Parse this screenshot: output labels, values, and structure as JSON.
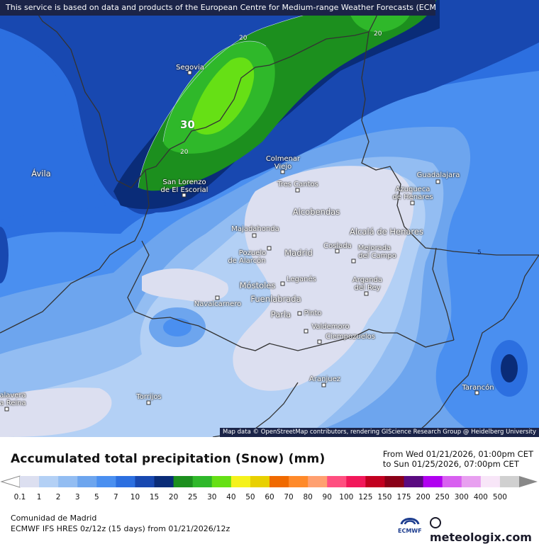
{
  "banner": "This service is based on data and products of the European Centre for Medium-range Weather Forecasts (ECMWF)",
  "attribution": "Map data © OpenStreetMap contributors, rendering GIScience Research Group @ Heidelberg University",
  "cities": [
    {
      "name": "Segovia",
      "key": "segovia"
    },
    {
      "name": "Ávila",
      "key": "avila"
    },
    {
      "name": "San Lorenzo",
      "key": "san_lorenzo_1"
    },
    {
      "name": "de El Escorial",
      "key": "san_lorenzo_2"
    },
    {
      "name": "Colmenar",
      "key": "colmenar_1"
    },
    {
      "name": "Viejo",
      "key": "colmenar_2"
    },
    {
      "name": "Tres Cantos",
      "key": "tres_cantos"
    },
    {
      "name": "Guadalajara",
      "key": "guadalajara"
    },
    {
      "name": "Azuqueca",
      "key": "azuqueca_1"
    },
    {
      "name": "de Henares",
      "key": "azuqueca_2"
    },
    {
      "name": "Alcobendas",
      "key": "alcobendas"
    },
    {
      "name": "Majadahonda",
      "key": "majadahonda"
    },
    {
      "name": "Alcalá de Henares",
      "key": "alcala"
    },
    {
      "name": "Pozuelo",
      "key": "pozuelo_1"
    },
    {
      "name": "de Alarcón",
      "key": "pozuelo_2"
    },
    {
      "name": "Madrid",
      "key": "madrid"
    },
    {
      "name": "Coslada",
      "key": "coslada"
    },
    {
      "name": "Mejorada",
      "key": "mejorada_1"
    },
    {
      "name": "del Campo",
      "key": "mejorada_2"
    },
    {
      "name": "Leganés",
      "key": "leganes"
    },
    {
      "name": "Móstoles",
      "key": "mostoles"
    },
    {
      "name": "Arganda",
      "key": "arganda_1"
    },
    {
      "name": "del Rey",
      "key": "arganda_2"
    },
    {
      "name": "Fuenlabrada",
      "key": "fuenlabrada"
    },
    {
      "name": "Navalcarnero",
      "key": "navalcarnero"
    },
    {
      "name": "Parla",
      "key": "parla"
    },
    {
      "name": "Pinto",
      "key": "pinto"
    },
    {
      "name": "Valdemoro",
      "key": "valdemoro"
    },
    {
      "name": "Ciempozuelos",
      "key": "ciempozuelos"
    },
    {
      "name": "Aranjuez",
      "key": "aranjuez"
    },
    {
      "name": "Tarancón",
      "key": "tarancon"
    },
    {
      "name": "Torrijos",
      "key": "torrijos"
    },
    {
      "name": "alavera",
      "key": "talavera_1"
    },
    {
      "name": "a Reina",
      "key": "talavera_2"
    }
  ],
  "contour_labels": {
    "c20a": "20",
    "c20b": "20",
    "c20c": "20",
    "c30": "30",
    "c5": "5"
  },
  "title": "Accumulated total precipitation (Snow) (mm)",
  "range_from": "From Wed 01/21/2026, 01:00pm CET",
  "range_to": "to Sun 01/25/2026, 07:00pm CET",
  "legend": {
    "values": [
      "0.1",
      "1",
      "2",
      "3",
      "5",
      "7",
      "10",
      "15",
      "20",
      "25",
      "30",
      "40",
      "50",
      "60",
      "70",
      "80",
      "90",
      "100",
      "125",
      "150",
      "175",
      "200",
      "250",
      "300",
      "400",
      "500"
    ],
    "colors": [
      "#dcdff0",
      "#b3d0f5",
      "#93bdf2",
      "#6da5ee",
      "#4a8ff0",
      "#2c6fe0",
      "#1848b0",
      "#0a2c78",
      "#1c8f1e",
      "#2fb82a",
      "#66e015",
      "#f5f21c",
      "#e8d000",
      "#f06a00",
      "#ff8a2a",
      "#ffa070",
      "#ff4f80",
      "#f2185a",
      "#c20020",
      "#8a0018",
      "#5a0a80",
      "#b000f0",
      "#d860f0",
      "#e8a0f0",
      "#f8e6f8",
      "#d0d0d0"
    ],
    "unit": "mm"
  },
  "region": "Comunidad de Madrid",
  "model": "ECMWF IFS HRES 0z/12z (15 days) from 01/21/2026/12z",
  "ecmwf_label": "ECMWF",
  "brand": "meteologix.com"
}
